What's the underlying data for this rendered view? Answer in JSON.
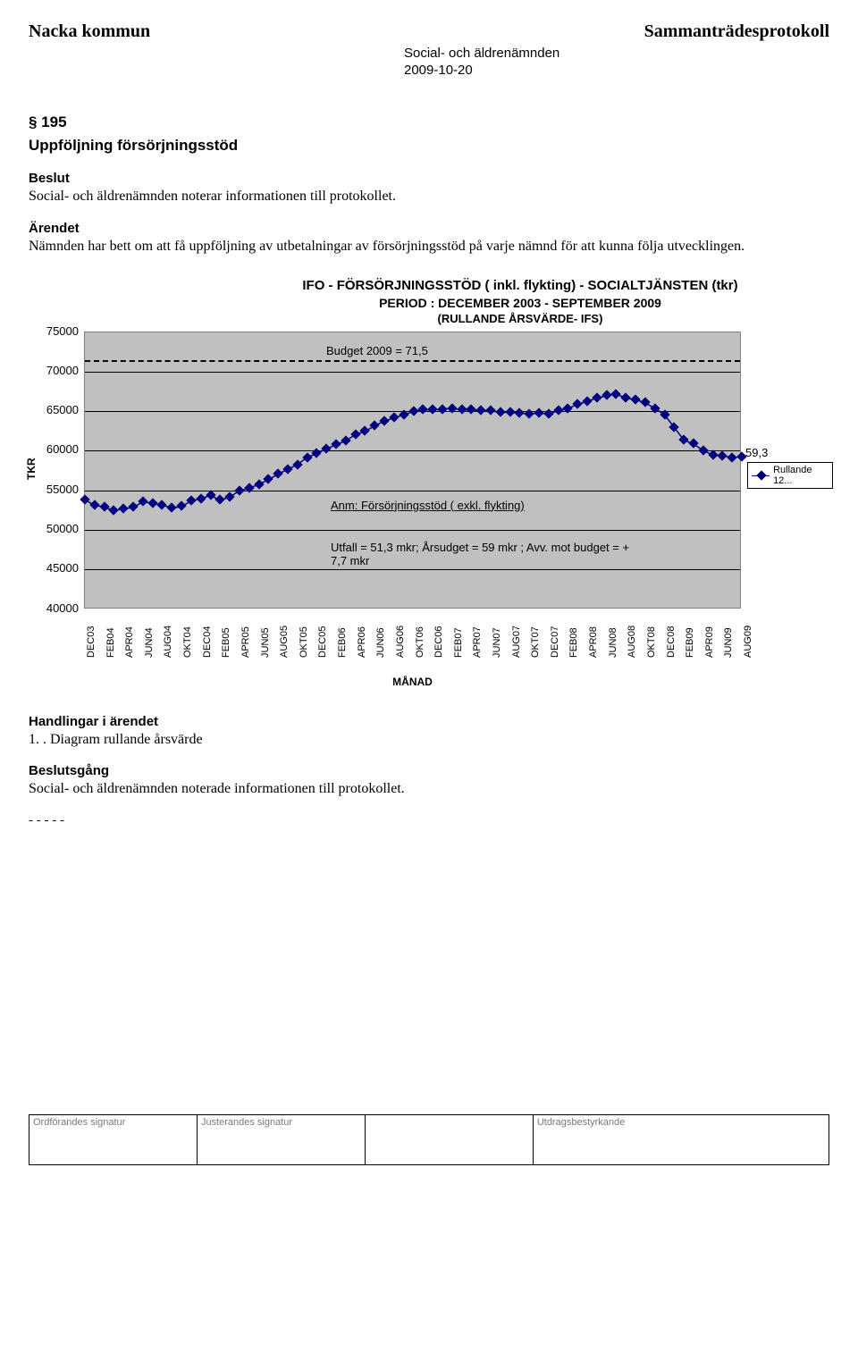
{
  "header": {
    "left": "Nacka kommun",
    "right": "Sammanträdesprotokoll",
    "sub": "Social- och äldrenämnden",
    "date": "2009-10-20"
  },
  "section": {
    "num": "§ 195",
    "title": "Uppföljning försörjningsstöd"
  },
  "beslut": {
    "label": "Beslut",
    "text": "Social- och äldrenämnden noterar informationen till protokollet."
  },
  "arendet": {
    "label": "Ärendet",
    "text": "Nämnden har bett om att få uppföljning av utbetalningar av försörjningsstöd på varje nämnd för att kunna följa utvecklingen."
  },
  "chart": {
    "title": "IFO - FÖRSÖRJNINGSSTÖD ( inkl. flykting) - SOCIALTJÄNSTEN (tkr)",
    "subtitle": "PERIOD : DECEMBER 2003 - SEPTEMBER 2009",
    "subsub": "(RULLANDE ÅRSVÄRDE- IFS)",
    "y_min": 40000,
    "y_max": 75000,
    "y_ticks": [
      40000,
      45000,
      50000,
      55000,
      60000,
      65000,
      70000,
      75000
    ],
    "y_tick_step": 5000,
    "y_label": "TKR",
    "y_special_tick": "55000",
    "x_label": "MÅNAD",
    "x_labels": [
      "DEC03",
      "FEB04",
      "APR04",
      "JUN04",
      "AUG04",
      "OKT04",
      "DEC04",
      "FEB05",
      "APR05",
      "JUN05",
      "AUG05",
      "OKT05",
      "DEC05",
      "FEB06",
      "APR06",
      "JUN06",
      "AUG06",
      "OKT06",
      "DEC06",
      "FEB07",
      "APR07",
      "JUN07",
      "AUG07",
      "OKT07",
      "DEC07",
      "FEB08",
      "APR08",
      "JUN08",
      "AUG08",
      "OKT08",
      "DEC08",
      "FEB09",
      "APR09",
      "JUN09",
      "AUG09"
    ],
    "budget_label": "Budget 2009 = 71,5",
    "budget_value": 71500,
    "note1": "Anm: Försörjningsstöd ( exkl. flykting)",
    "note2": "Utfall = 51,3 mkr; Årsudget = 59 mkr ; Avv. mot budget = + 7,7 mkr",
    "callout_value": "59,3",
    "legend_text": "Rullande 12...",
    "series_color": "#000080",
    "plot_bg": "#c0c0c0",
    "series": [
      53800,
      53200,
      52900,
      52500,
      52700,
      52900,
      53600,
      53400,
      53200,
      52800,
      53000,
      53700,
      54000,
      54400,
      53800,
      54200,
      55000,
      55300,
      55800,
      56400,
      57100,
      57700,
      58300,
      59200,
      59700,
      60300,
      60800,
      61300,
      62100,
      62500,
      63200,
      63800,
      64200,
      64600,
      65000,
      65200,
      65200,
      65300,
      65400,
      65200,
      65200,
      65100,
      65100,
      64900,
      64900,
      64800,
      64700,
      64800,
      64700,
      65100,
      65400,
      65900,
      66300,
      66700,
      67000,
      67200,
      66700,
      66500,
      66100,
      65400,
      64600,
      63000,
      61400,
      60900,
      60100,
      59500,
      59400,
      59200,
      59300
    ]
  },
  "handlingar": {
    "label": "Handlingar i ärendet",
    "item1": "1. . Diagram rullande årsvärde"
  },
  "beslutsgang": {
    "label": "Beslutsgång",
    "text": "Social- och äldrenämnden noterade informationen till protokollet."
  },
  "dashes": "- - - - -",
  "footer": {
    "col1": "Ordförandes signatur",
    "col2": "Justerandes signatur",
    "col3": "",
    "col4": "Utdragsbestyrkande"
  }
}
